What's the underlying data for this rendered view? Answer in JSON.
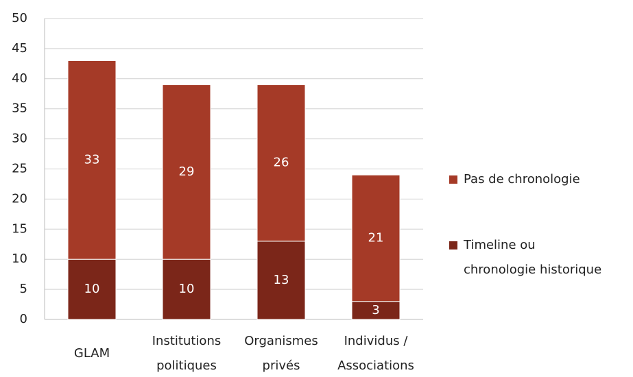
{
  "chart_data": {
    "type": "stacked_bar",
    "categories": [
      "GLAM",
      "Institutions\npolitiques",
      "Organismes\nprivés",
      "Individus /\nAssociations"
    ],
    "series": [
      {
        "name": "Timeline ou\nchronologie historique",
        "color": "#7b2619",
        "values": [
          10,
          10,
          13,
          3
        ]
      },
      {
        "name": "Pas de chronologie",
        "color": "#a53a27",
        "values": [
          33,
          29,
          26,
          21
        ]
      }
    ],
    "ylim": [
      0,
      50
    ],
    "yticks": [
      0,
      5,
      10,
      15,
      20,
      25,
      30,
      35,
      40,
      45,
      50
    ],
    "grid": true,
    "legend": "right"
  }
}
